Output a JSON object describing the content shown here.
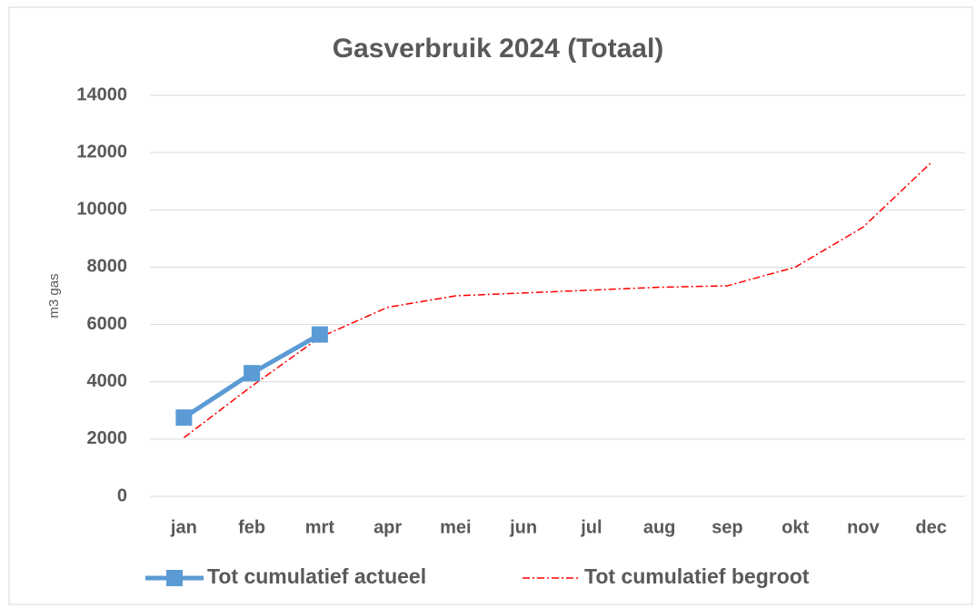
{
  "chart_data": {
    "type": "line",
    "title": "Gasverbruik 2024 (Totaal)",
    "y_label": "m3 gas",
    "categories": [
      "jan",
      "feb",
      "mrt",
      "apr",
      "mei",
      "jun",
      "jul",
      "aug",
      "sep",
      "okt",
      "nov",
      "dec"
    ],
    "series": [
      {
        "name": "Tot cumulatief actueel",
        "color": "#5b9bd5",
        "values": [
          2750,
          4300,
          5650,
          null,
          null,
          null,
          null,
          null,
          null,
          null,
          null,
          null
        ]
      },
      {
        "name": "Tot cumulatief begroot",
        "color": "#ff0000",
        "values": [
          2050,
          3850,
          5550,
          6600,
          7000,
          7100,
          7200,
          7300,
          7350,
          8000,
          9400,
          11650
        ]
      }
    ],
    "ylim": [
      0,
      14000
    ],
    "yticks": [
      0,
      2000,
      4000,
      6000,
      8000,
      10000,
      12000,
      14000
    ],
    "grid": true
  }
}
